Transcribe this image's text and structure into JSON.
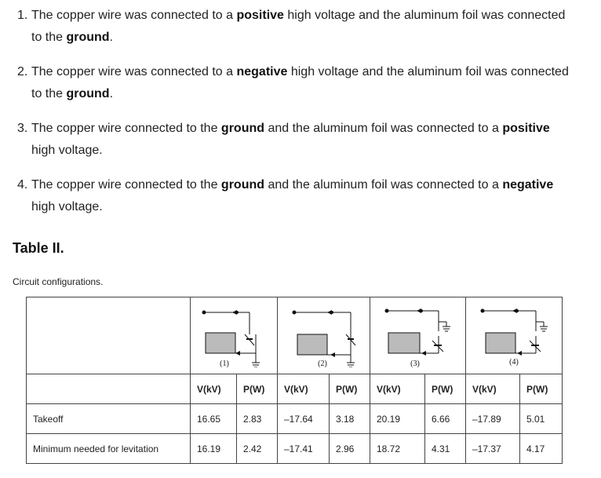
{
  "list_items": [
    {
      "num": "1.",
      "parts": [
        "The copper wire was connected to a ",
        "positive",
        " high voltage and the aluminum foil was connected",
        "to the ",
        "ground",
        "."
      ]
    },
    {
      "num": "2.",
      "parts": [
        "The copper wire was connected to a ",
        "negative",
        " high voltage and the aluminum foil was connected",
        "to the ",
        "ground",
        "."
      ]
    },
    {
      "num": "3.",
      "parts": [
        "The copper wire connected to the ",
        "ground",
        " and the aluminum foil was connected to a ",
        "positive",
        "high voltage."
      ]
    },
    {
      "num": "4.",
      "parts": [
        "The copper wire connected to the ",
        "ground",
        " and the aluminum foil was connected to a ",
        "negative",
        "high voltage."
      ]
    }
  ],
  "table": {
    "title": "Table II.",
    "caption": "Circuit configurations.",
    "diagram_labels": [
      "(1)",
      "(2)",
      "(3)",
      "(4)"
    ],
    "headers": [
      "V(kV)",
      "P(W)",
      "V(kV)",
      "P(W)",
      "V(kV)",
      "P(W)",
      "V(kV)",
      "P(W)"
    ],
    "rows": [
      {
        "label": "Takeoff",
        "values": [
          "16.65",
          "2.83",
          "–17.64",
          "3.18",
          "20.19",
          "6.66",
          "–17.89",
          "5.01"
        ]
      },
      {
        "label": "Minimum needed for levitation",
        "values": [
          "16.19",
          "2.42",
          "–17.41",
          "2.96",
          "18.72",
          "4.31",
          "–17.37",
          "4.17"
        ]
      }
    ]
  }
}
